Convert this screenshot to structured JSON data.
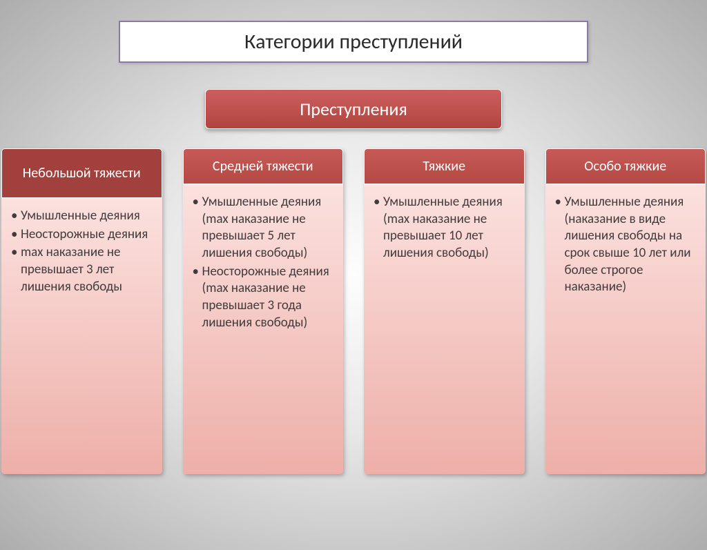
{
  "title": "Категории преступлений",
  "mainHeader": "Преступления",
  "colors": {
    "titleBorder": "#8a7aa8",
    "titleBg": "#ffffff",
    "mainHeaderBgStart": "#cc5e5e",
    "mainHeaderBgEnd": "#b2443f",
    "col0HeaderBg": "#a1403c",
    "colHeaderBgStart": "#c55a57",
    "colHeaderBgEnd": "#b54944",
    "colBodyBgStart": "#fbe1df",
    "colBodyBgEnd": "#eeafa8",
    "bodyText": "#413b3b"
  },
  "columns": [
    {
      "header": "Небольшой тяжести",
      "headerHeight": 72,
      "bodyHeight": 320,
      "items": [
        "Умышленные деяния",
        "Неосторожные деяния",
        "max наказание не превышает 3 лет лишения свободы"
      ]
    },
    {
      "header": "Средней тяжести",
      "headerHeight": 52,
      "bodyHeight": 420,
      "items": [
        "Умышленные деяния (max наказание не превышает 5 лет лишения свободы)",
        "Неосторожные деяния (max наказание не превышает 3 года лишения свободы)"
      ]
    },
    {
      "header": "Тяжкие",
      "headerHeight": 52,
      "bodyHeight": 420,
      "items": [
        "Умышленные деяния (max наказание не превышает 10 лет лишения свободы)"
      ]
    },
    {
      "header": "Особо тяжкие",
      "headerHeight": 52,
      "bodyHeight": 420,
      "items": [
        "Умышленные деяния (наказание в виде лишения свободы на срок свыше 10 лет или более строгое наказание)"
      ]
    }
  ]
}
